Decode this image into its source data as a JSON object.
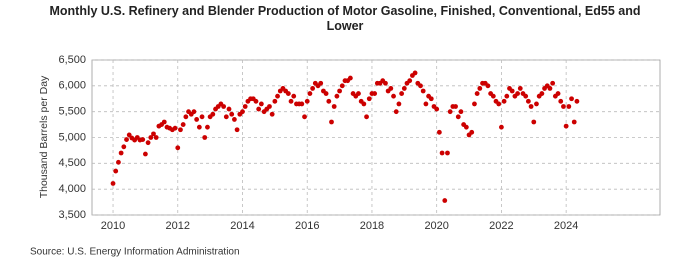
{
  "chart_data": {
    "type": "scatter",
    "title": "Monthly U.S. Refinery and Blender Production of Motor Gasoline, Finished, Conventional, Ed55 and Lower",
    "y_label": "Thousand Barrels per Day",
    "source": "Source: U.S. Energy Information Administration",
    "color": "#cc0000",
    "grid": true,
    "xlim": [
      2009.35,
      2026.9
    ],
    "xticks": [
      2010,
      2012,
      2014,
      2016,
      2018,
      2020,
      2022,
      2024
    ],
    "ylim": [
      3500,
      6500
    ],
    "yticks": [
      {
        "value": 3500,
        "label": "3,500"
      },
      {
        "value": 4000,
        "label": "4,000"
      },
      {
        "value": 4500,
        "label": "4,500"
      },
      {
        "value": 5000,
        "label": "5,000"
      },
      {
        "value": 5500,
        "label": "5,500"
      },
      {
        "value": 6000,
        "label": "6,000"
      },
      {
        "value": 6500,
        "label": "6,500"
      }
    ],
    "x": [
      2010,
      2010.083,
      2010.167,
      2010.25,
      2010.333,
      2010.417,
      2010.5,
      2010.583,
      2010.667,
      2010.75,
      2010.833,
      2010.917,
      2011,
      2011.083,
      2011.167,
      2011.25,
      2011.333,
      2011.417,
      2011.5,
      2011.583,
      2011.667,
      2011.75,
      2011.833,
      2011.917,
      2012,
      2012.083,
      2012.167,
      2012.25,
      2012.333,
      2012.417,
      2012.5,
      2012.583,
      2012.667,
      2012.75,
      2012.833,
      2012.917,
      2013,
      2013.083,
      2013.167,
      2013.25,
      2013.333,
      2013.417,
      2013.5,
      2013.583,
      2013.667,
      2013.75,
      2013.833,
      2013.917,
      2014,
      2014.083,
      2014.167,
      2014.25,
      2014.333,
      2014.417,
      2014.5,
      2014.583,
      2014.667,
      2014.75,
      2014.833,
      2014.917,
      2015,
      2015.083,
      2015.167,
      2015.25,
      2015.333,
      2015.417,
      2015.5,
      2015.583,
      2015.667,
      2015.75,
      2015.833,
      2015.917,
      2016,
      2016.083,
      2016.167,
      2016.25,
      2016.333,
      2016.417,
      2016.5,
      2016.583,
      2016.667,
      2016.75,
      2016.833,
      2016.917,
      2017,
      2017.083,
      2017.167,
      2017.25,
      2017.333,
      2017.417,
      2017.5,
      2017.583,
      2017.667,
      2017.75,
      2017.833,
      2017.917,
      2018,
      2018.083,
      2018.167,
      2018.25,
      2018.333,
      2018.417,
      2018.5,
      2018.583,
      2018.667,
      2018.75,
      2018.833,
      2018.917,
      2019,
      2019.083,
      2019.167,
      2019.25,
      2019.333,
      2019.417,
      2019.5,
      2019.583,
      2019.667,
      2019.75,
      2019.833,
      2019.917,
      2020,
      2020.083,
      2020.167,
      2020.25,
      2020.333,
      2020.417,
      2020.5,
      2020.583,
      2020.667,
      2020.75,
      2020.833,
      2020.917,
      2021,
      2021.083,
      2021.167,
      2021.25,
      2021.333,
      2021.417,
      2021.5,
      2021.583,
      2021.667,
      2021.75,
      2021.833,
      2021.917,
      2022,
      2022.083,
      2022.167,
      2022.25,
      2022.333,
      2022.417,
      2022.5,
      2022.583,
      2022.667,
      2022.75,
      2022.833,
      2022.917,
      2023,
      2023.083,
      2023.167,
      2023.25,
      2023.333,
      2023.417,
      2023.5,
      2023.583,
      2023.667,
      2023.75,
      2023.833,
      2023.917,
      2024,
      2024.083,
      2024.167,
      2024.25,
      2024.333
    ],
    "values": [
      4110,
      4350,
      4520,
      4700,
      4820,
      4960,
      5050,
      4990,
      4950,
      5000,
      4950,
      4960,
      4680,
      4900,
      5000,
      5070,
      5000,
      5220,
      5250,
      5300,
      5200,
      5180,
      5150,
      5180,
      4800,
      5150,
      5250,
      5400,
      5500,
      5450,
      5500,
      5350,
      5200,
      5400,
      5000,
      5200,
      5400,
      5450,
      5550,
      5600,
      5650,
      5600,
      5400,
      5550,
      5450,
      5350,
      5150,
      5450,
      5500,
      5600,
      5700,
      5750,
      5750,
      5700,
      5550,
      5650,
      5500,
      5550,
      5600,
      5450,
      5700,
      5800,
      5900,
      5950,
      5900,
      5850,
      5700,
      5800,
      5650,
      5650,
      5650,
      5400,
      5700,
      5850,
      5950,
      6050,
      6000,
      6050,
      5900,
      5850,
      5700,
      5300,
      5600,
      5800,
      5900,
      6000,
      6100,
      6100,
      6150,
      5850,
      5800,
      5850,
      5700,
      5650,
      5400,
      5750,
      5850,
      5850,
      6050,
      6050,
      6100,
      6050,
      5900,
      5950,
      5800,
      5500,
      5650,
      5850,
      5950,
      6050,
      6100,
      6200,
      6250,
      6050,
      6000,
      5900,
      5650,
      5800,
      5750,
      5600,
      5550,
      5100,
      4700,
      3780,
      4700,
      5500,
      5600,
      5600,
      5400,
      5500,
      5250,
      5200,
      5050,
      5100,
      5650,
      5850,
      5950,
      6050,
      6050,
      6000,
      5850,
      5800,
      5700,
      5650,
      5200,
      5700,
      5800,
      5950,
      5900,
      5800,
      5850,
      5950,
      5850,
      5800,
      5700,
      5600,
      5300,
      5650,
      5800,
      5850,
      5950,
      6000,
      5950,
      6050,
      5800,
      5850,
      5700,
      5600,
      5220,
      5600,
      5750,
      5300,
      5700
    ]
  }
}
